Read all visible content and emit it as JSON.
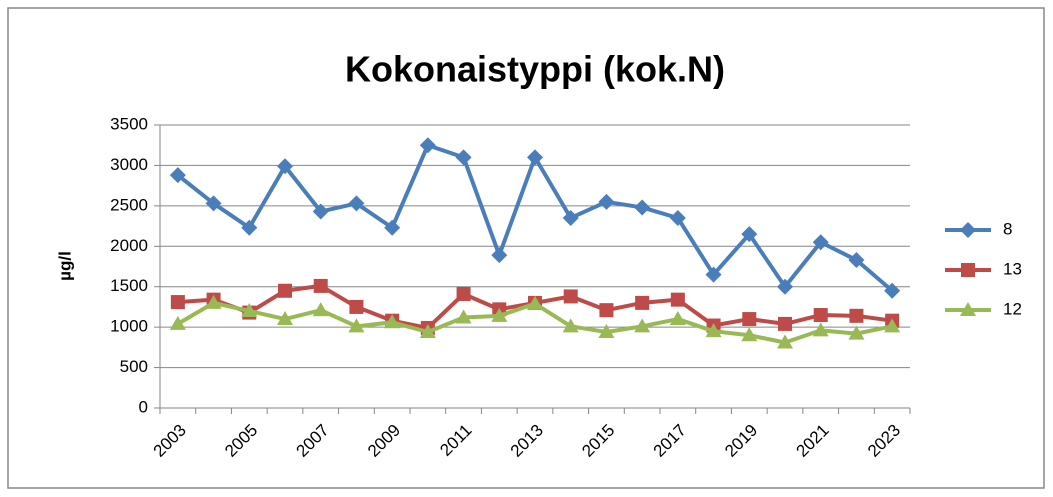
{
  "chart_data": {
    "type": "line",
    "title": "Kokonaistyppi (kok.N)",
    "y_label": "µg/l",
    "categories": [
      "2003",
      null,
      "2005",
      null,
      "2007",
      null,
      "2009",
      null,
      "2011",
      null,
      "2013",
      null,
      "2015",
      null,
      "2017",
      null,
      "2019",
      null,
      "2021",
      null,
      "2023"
    ],
    "series": [
      {
        "name": "8",
        "color": "#4a7ebb",
        "marker": "diamond",
        "values": [
          2880,
          2530,
          2230,
          2990,
          2430,
          2530,
          2230,
          3250,
          3100,
          1890,
          3100,
          2350,
          2550,
          2480,
          2350,
          1650,
          2150,
          1500,
          2050,
          1830,
          1450
        ]
      },
      {
        "name": "13",
        "color": "#be4b48",
        "marker": "square",
        "values": [
          1310,
          1340,
          1180,
          1450,
          1510,
          1250,
          1080,
          990,
          1410,
          1220,
          1300,
          1380,
          1210,
          1300,
          1340,
          1020,
          1100,
          1040,
          1150,
          1140,
          1080
        ]
      },
      {
        "name": "12",
        "color": "#98b954",
        "marker": "triangle",
        "values": [
          1040,
          1300,
          1200,
          1100,
          1210,
          1010,
          1060,
          940,
          1120,
          1140,
          1290,
          1010,
          940,
          1010,
          1100,
          950,
          900,
          810,
          960,
          920,
          1010
        ]
      }
    ],
    "ylim": [
      0,
      3500
    ],
    "yticks": [
      0,
      500,
      1000,
      1500,
      2000,
      2500,
      3000,
      3500
    ],
    "grid": true,
    "legend": "right"
  }
}
